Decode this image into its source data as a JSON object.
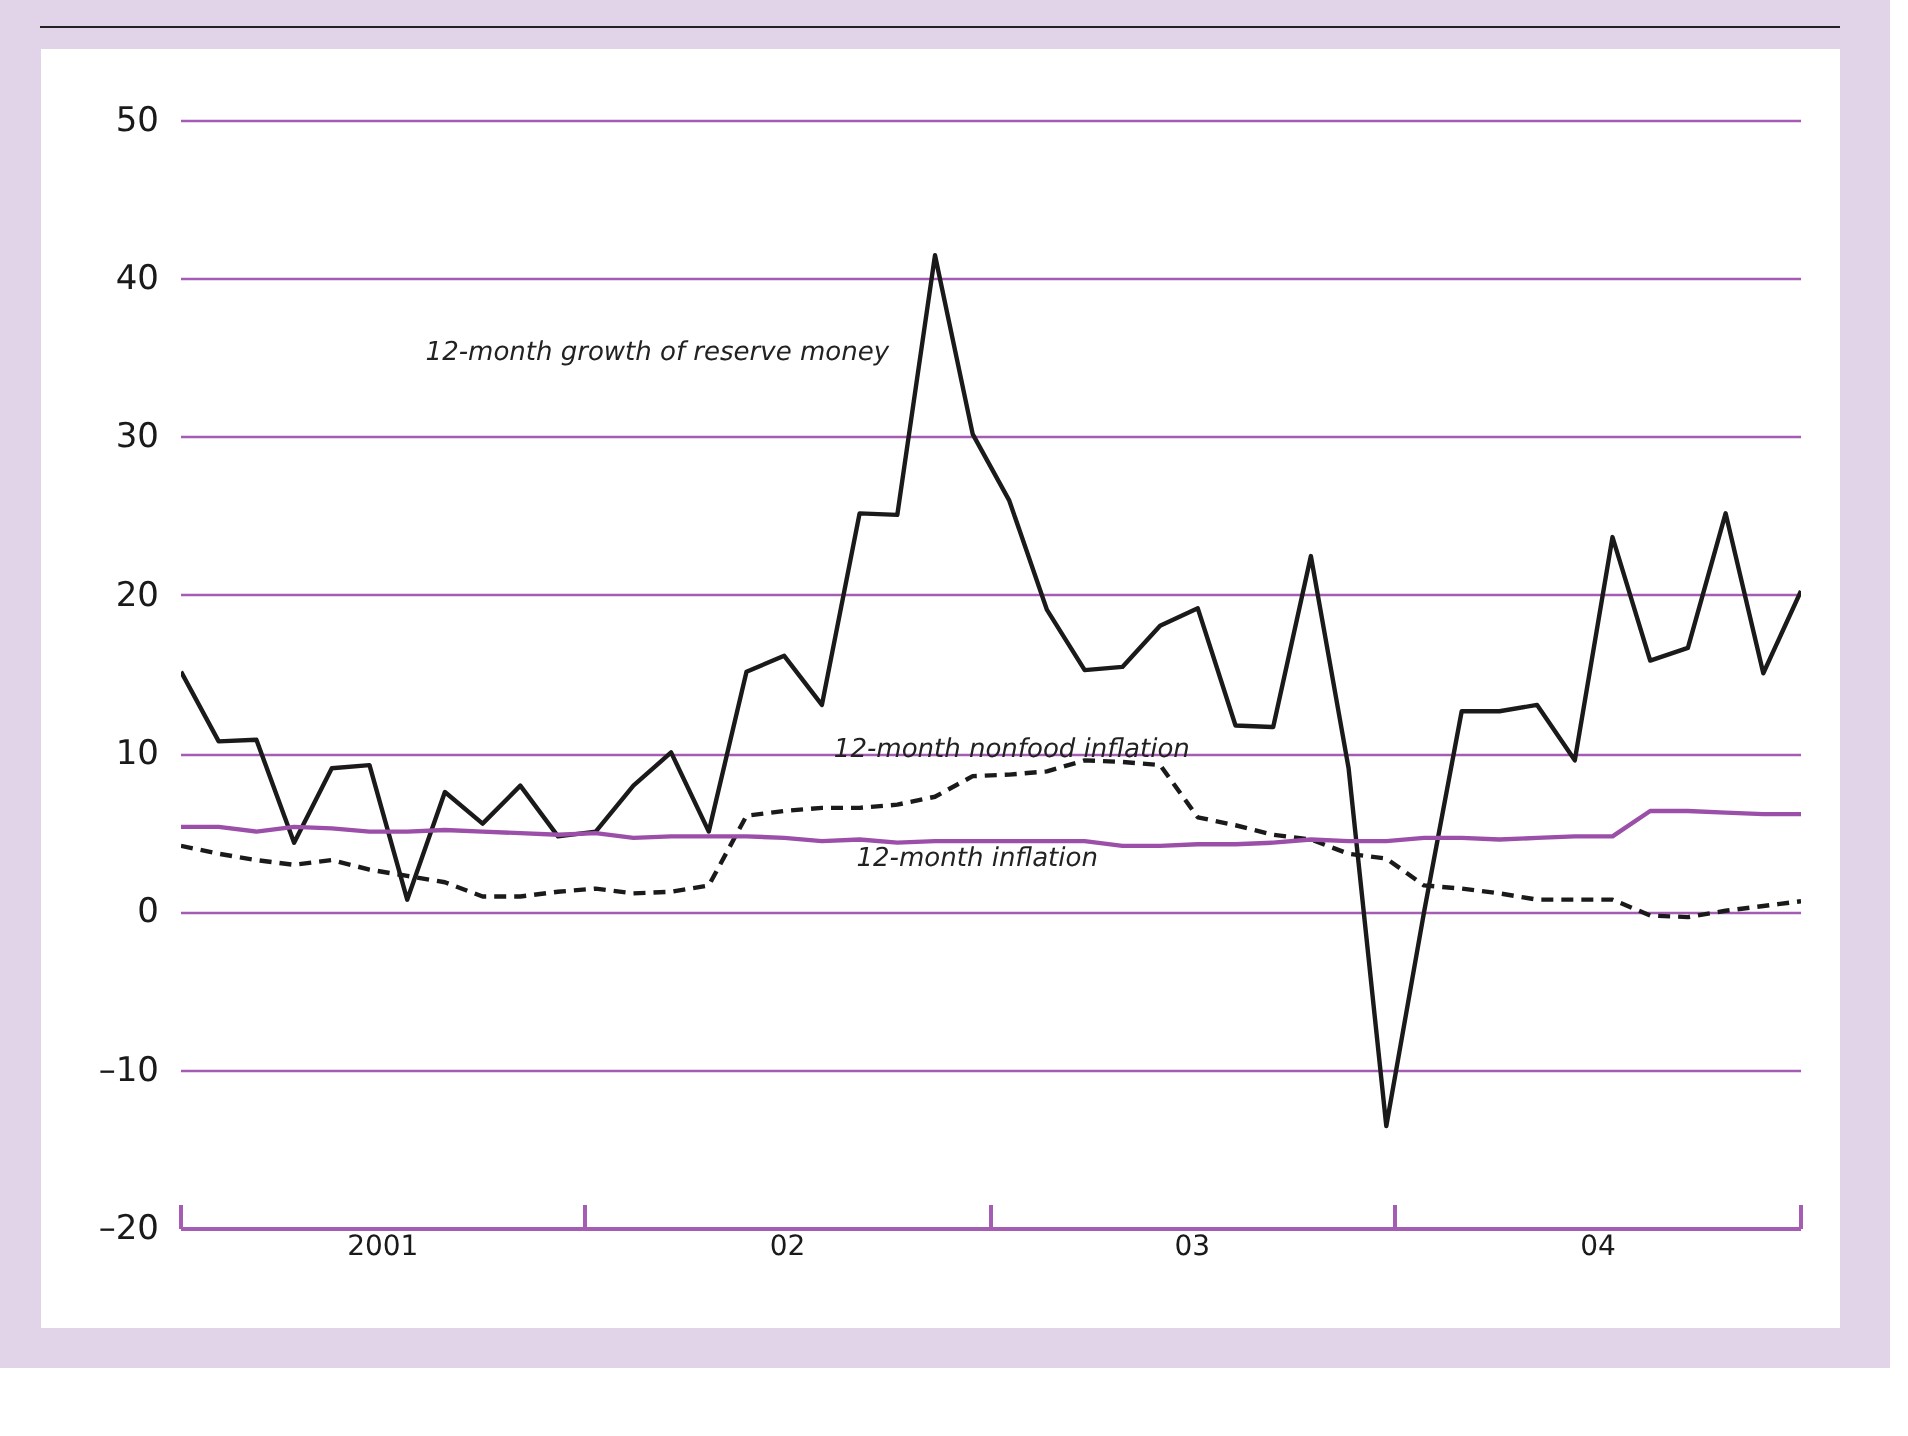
{
  "chart_data": {
    "type": "line",
    "xlim": [
      "2001-01-01",
      "2005-01-01"
    ],
    "ylim": [
      -20,
      52
    ],
    "yticks": [
      {
        "value": -20,
        "label": "–20"
      },
      {
        "value": -10,
        "label": "–10"
      },
      0,
      10,
      20,
      30,
      40,
      50
    ],
    "xticks": [
      {
        "value": "2001-01-01",
        "label": null
      },
      {
        "value": "2001-07-02",
        "label": "2001"
      },
      {
        "value": "2002-01-01",
        "label": null
      },
      {
        "value": "2002-07-02",
        "label": "02"
      },
      {
        "value": "2003-01-01",
        "label": null
      },
      {
        "value": "2003-07-02",
        "label": "03"
      },
      {
        "value": "2004-01-01",
        "label": null
      },
      {
        "value": "2004-07-02",
        "label": "04"
      },
      {
        "value": "2005-01-01",
        "label": null
      }
    ],
    "x": [
      "2001-01-01",
      "2001-02-04",
      "2001-03-10",
      "2001-04-13",
      "2001-05-17",
      "2001-06-20",
      "2001-07-24",
      "2001-08-27",
      "2001-09-30",
      "2001-11-03",
      "2001-12-07",
      "2002-01-10",
      "2002-02-13",
      "2002-03-19",
      "2002-04-22",
      "2002-05-26",
      "2002-06-29",
      "2002-08-02",
      "2002-09-05",
      "2002-10-09",
      "2002-11-12",
      "2002-12-16",
      "2003-01-18",
      "2003-02-21",
      "2003-03-27",
      "2003-04-30",
      "2003-06-03",
      "2003-07-07",
      "2003-08-10",
      "2003-09-13",
      "2003-10-17",
      "2003-11-20",
      "2003-12-24",
      "2004-01-27",
      "2004-03-01",
      "2004-04-04",
      "2004-05-08",
      "2004-06-11",
      "2004-07-15",
      "2004-08-18",
      "2004-09-21",
      "2004-10-25",
      "2004-11-28",
      "2005-01-01"
    ],
    "grid": "y",
    "series": [
      {
        "name": "12-month growth of reserve money",
        "color": "#1a1a1a",
        "line_style": "solid",
        "values": [
          15.2,
          10.8,
          10.9,
          4.4,
          9.1,
          9.3,
          0.8,
          7.6,
          5.6,
          8.0,
          4.8,
          5.1,
          8.0,
          10.1,
          5.1,
          15.2,
          16.2,
          13.1,
          25.2,
          25.1,
          41.5,
          30.2,
          26.0,
          19.1,
          15.3,
          15.5,
          18.1,
          19.2,
          11.8,
          11.7,
          22.5,
          9.1,
          -13.5,
          0,
          12.7,
          12.7,
          13.1,
          9.6,
          23.7,
          15.9,
          16.7,
          25.2,
          15.1,
          20.3
        ]
      },
      {
        "name": "12-month nonfood inflation",
        "color": "#1a1a1a",
        "line_style": "dashed",
        "values": [
          4.2,
          3.7,
          3.3,
          3.0,
          3.3,
          2.7,
          2.3,
          1.9,
          1.0,
          1.0,
          1.3,
          1.5,
          1.2,
          1.3,
          1.7,
          6.1,
          6.4,
          6.6,
          6.6,
          6.8,
          7.3,
          8.6,
          8.7,
          8.9,
          9.6,
          9.5,
          9.3,
          6.0,
          5.5,
          4.9,
          4.6,
          3.7,
          3.4,
          1.7,
          1.5,
          1.2,
          0.8,
          0.8,
          0.8,
          -0.2,
          -0.3,
          0.1,
          0.4,
          0.7
        ]
      },
      {
        "name": "12-month inflation",
        "color": "#9b4fa8",
        "line_style": "solid",
        "values": [
          5.4,
          5.4,
          5.1,
          5.4,
          5.3,
          5.1,
          5.1,
          5.2,
          5.1,
          5.0,
          4.9,
          5.0,
          4.7,
          4.8,
          4.8,
          4.8,
          4.7,
          4.5,
          4.6,
          4.4,
          4.5,
          4.5,
          4.5,
          4.5,
          4.5,
          4.2,
          4.2,
          4.3,
          4.3,
          4.4,
          4.6,
          4.5,
          4.5,
          4.7,
          4.7,
          4.6,
          4.7,
          4.8,
          4.8,
          6.4,
          6.4,
          6.3,
          6.2,
          6.2
        ]
      }
    ]
  }
}
